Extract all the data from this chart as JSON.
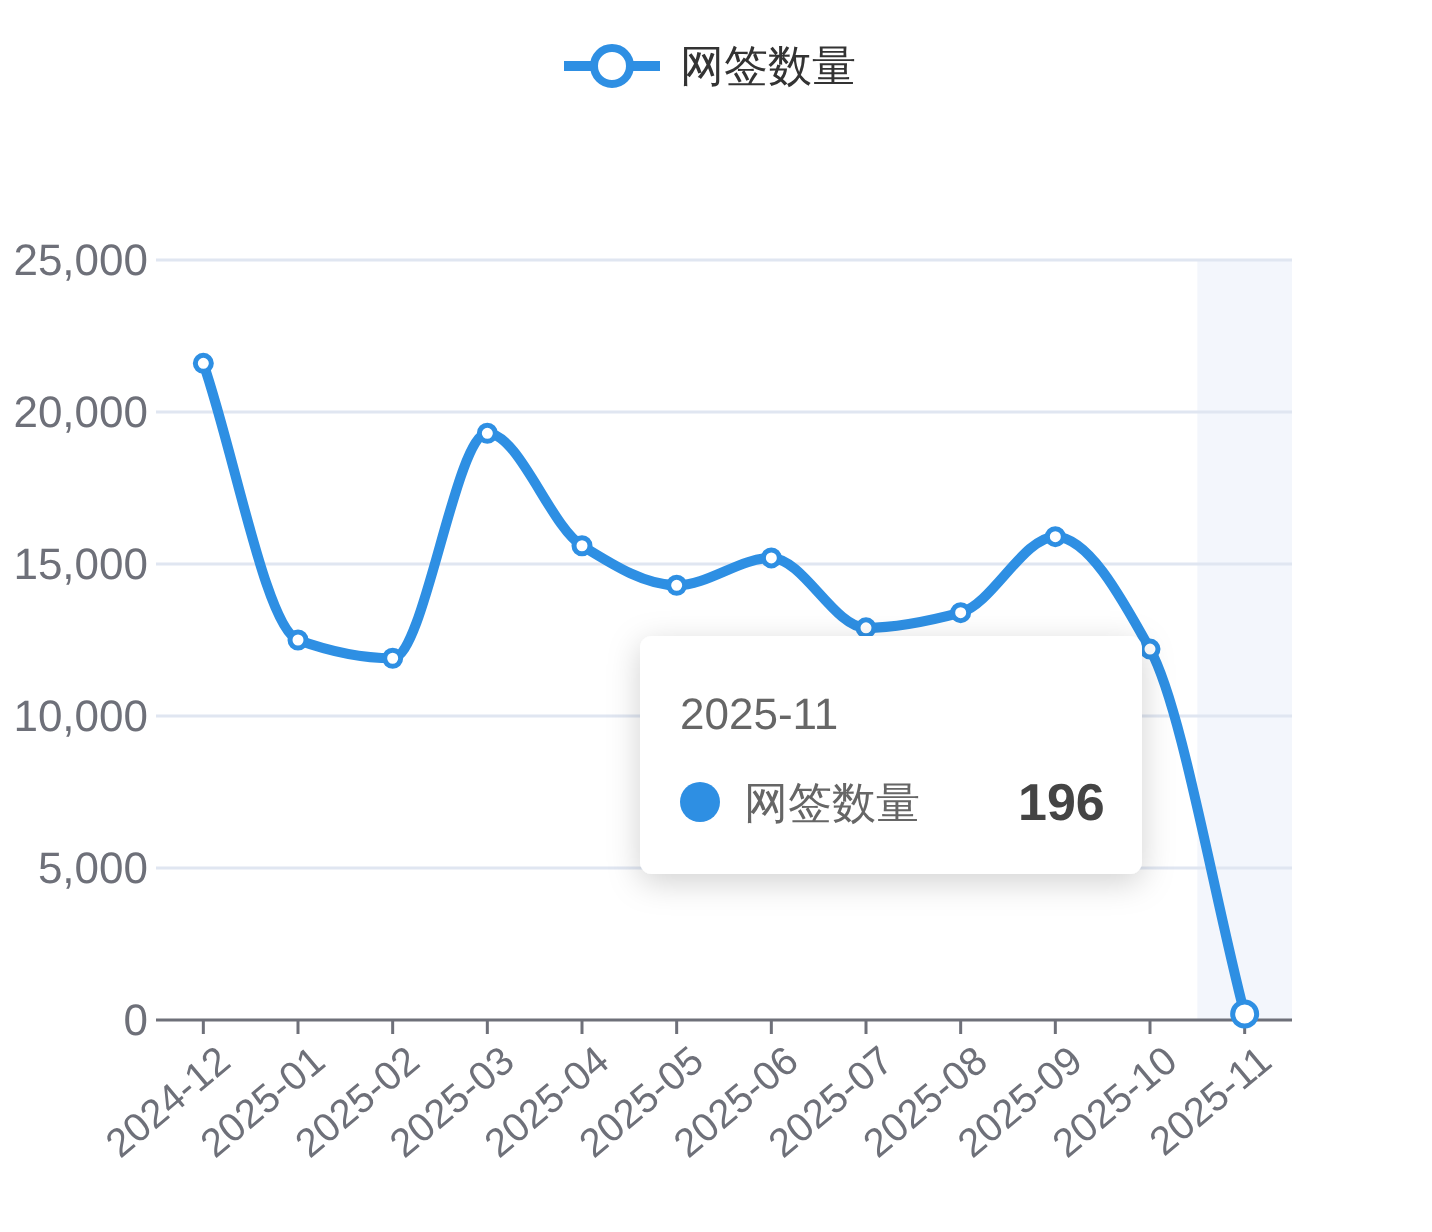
{
  "chart_data": {
    "type": "line",
    "categories": [
      "2024-12",
      "2025-01",
      "2025-02",
      "2025-03",
      "2025-04",
      "2025-05",
      "2025-06",
      "2025-07",
      "2025-08",
      "2025-09",
      "2025-10",
      "2025-11"
    ],
    "series": [
      {
        "name": "网签数量",
        "color": "#2e8fe3",
        "values": [
          21600,
          12500,
          11900,
          19300,
          15600,
          14300,
          15200,
          12900,
          13400,
          15900,
          12200,
          196
        ]
      }
    ],
    "ylim": [
      0,
      25000
    ],
    "yticks": [
      {
        "value": 0,
        "label": "0"
      },
      {
        "value": 5000,
        "label": "5,000"
      },
      {
        "value": 10000,
        "label": "10,000"
      },
      {
        "value": 15000,
        "label": "15,000"
      },
      {
        "value": 20000,
        "label": "20,000"
      },
      {
        "value": 25000,
        "label": "25,000"
      }
    ],
    "grid": "y",
    "legend": "top",
    "marker": "circle",
    "line_style": "solid",
    "bands": [
      {
        "axis": "x",
        "from": "2025-11",
        "to": "2025-11",
        "color": "#f3f6fc"
      }
    ],
    "annotations": [
      "2025-11",
      "网签数量 196"
    ]
  }
}
